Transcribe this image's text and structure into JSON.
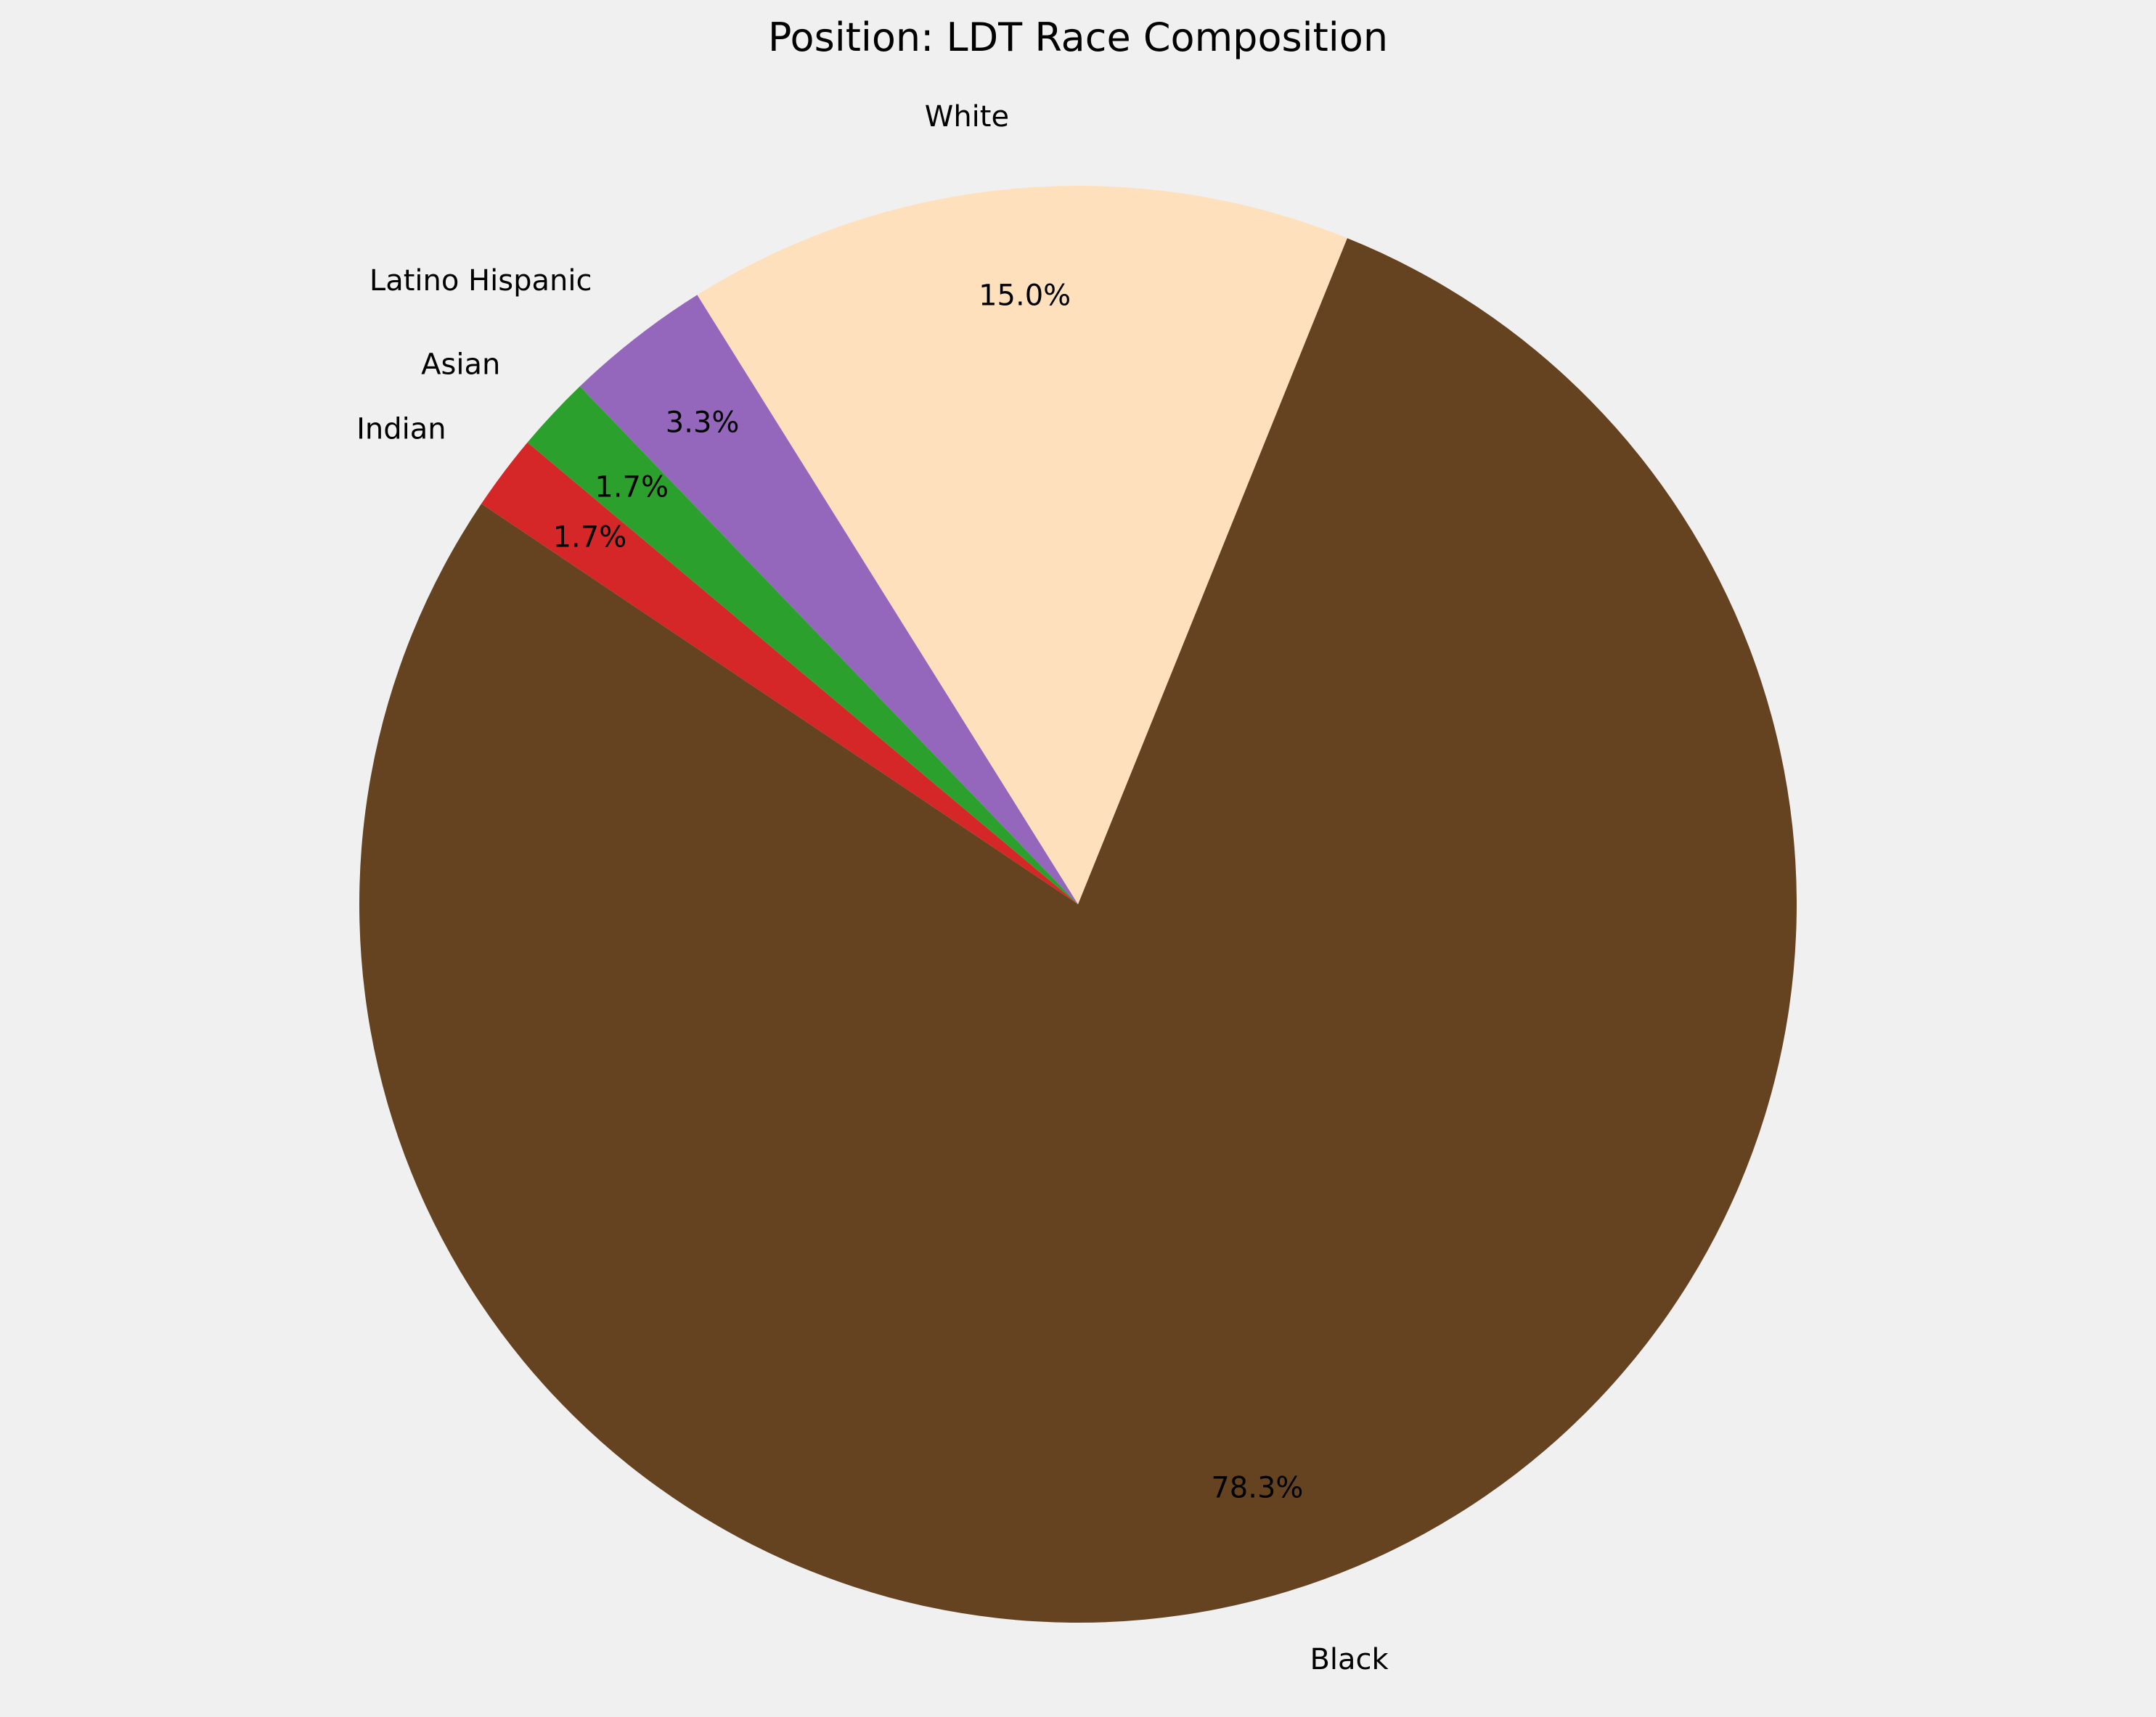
{
  "chart_data": {
    "type": "pie",
    "title": "Position: LDT Race Composition",
    "start_angle_deg": 140,
    "direction": "counterclockwise",
    "slices": [
      {
        "label": "Indian",
        "value": 1.7,
        "pct_text": "1.7%",
        "color": "#d62728"
      },
      {
        "label": "Black",
        "value": 78.3,
        "pct_text": "78.3%",
        "color": "#654321"
      },
      {
        "label": "White",
        "value": 15.0,
        "pct_text": "15.0%",
        "color": "#ffe0bd"
      },
      {
        "label": "Latino Hispanic",
        "value": 3.3,
        "pct_text": "3.3%",
        "color": "#9467bd"
      },
      {
        "label": "Asian",
        "value": 1.7,
        "pct_text": "1.7%",
        "color": "#2ca02c"
      }
    ],
    "background": "#f0f0f0"
  }
}
